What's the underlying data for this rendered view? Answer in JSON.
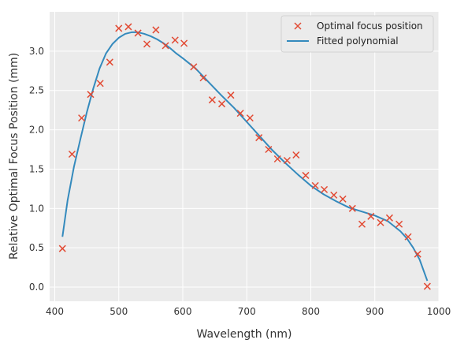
{
  "chart_data": {
    "type": "scatter",
    "xlabel": "Wavelength (nm)",
    "ylabel": "Relative Optimal Focus Position (mm)",
    "xlim": [
      392,
      1000
    ],
    "ylim": [
      -0.18,
      3.5
    ],
    "xticks": [
      400,
      500,
      600,
      700,
      800,
      900,
      1000
    ],
    "yticks": [
      0.0,
      0.5,
      1.0,
      1.5,
      2.0,
      2.5,
      3.0
    ],
    "grid": true,
    "legend_position": "top-right",
    "colors": {
      "background": "#ebebeb",
      "grid": "#ffffff",
      "scatter": "#e24a33",
      "line": "#348abd"
    },
    "series": [
      {
        "name": "Optimal focus position",
        "kind": "scatter",
        "marker": "x",
        "x": [
          412,
          427,
          442,
          456,
          471,
          486,
          500,
          515,
          530,
          544,
          558,
          573,
          588,
          602,
          617,
          632,
          646,
          661,
          675,
          690,
          705,
          719,
          734,
          748,
          763,
          777,
          792,
          807,
          821,
          836,
          850,
          865,
          880,
          894,
          909,
          923,
          938,
          952,
          967,
          982
        ],
        "y": [
          0.49,
          1.69,
          2.15,
          2.45,
          2.59,
          2.86,
          3.29,
          3.31,
          3.23,
          3.09,
          3.27,
          3.07,
          3.14,
          3.1,
          2.8,
          2.66,
          2.38,
          2.33,
          2.44,
          2.21,
          2.15,
          1.9,
          1.75,
          1.63,
          1.61,
          1.68,
          1.42,
          1.29,
          1.24,
          1.17,
          1.12,
          1.0,
          0.8,
          0.9,
          0.82,
          0.88,
          0.8,
          0.64,
          0.42,
          0.01
        ]
      },
      {
        "name": "Fitted polynomial",
        "kind": "line",
        "x": [
          412,
          420,
          430,
          440,
          450,
          460,
          470,
          480,
          490,
          500,
          510,
          520,
          530,
          540,
          550,
          560,
          570,
          580,
          590,
          600,
          620,
          640,
          660,
          680,
          700,
          720,
          740,
          760,
          780,
          800,
          820,
          840,
          860,
          880,
          900,
          920,
          940,
          950,
          960,
          970,
          982
        ],
        "y": [
          0.64,
          1.1,
          1.53,
          1.88,
          2.22,
          2.52,
          2.78,
          2.97,
          3.09,
          3.17,
          3.22,
          3.24,
          3.24,
          3.22,
          3.19,
          3.15,
          3.1,
          3.04,
          2.97,
          2.91,
          2.78,
          2.61,
          2.44,
          2.28,
          2.1,
          1.92,
          1.74,
          1.58,
          1.43,
          1.29,
          1.18,
          1.09,
          1.01,
          0.96,
          0.91,
          0.84,
          0.71,
          0.62,
          0.5,
          0.35,
          0.08
        ]
      }
    ]
  }
}
